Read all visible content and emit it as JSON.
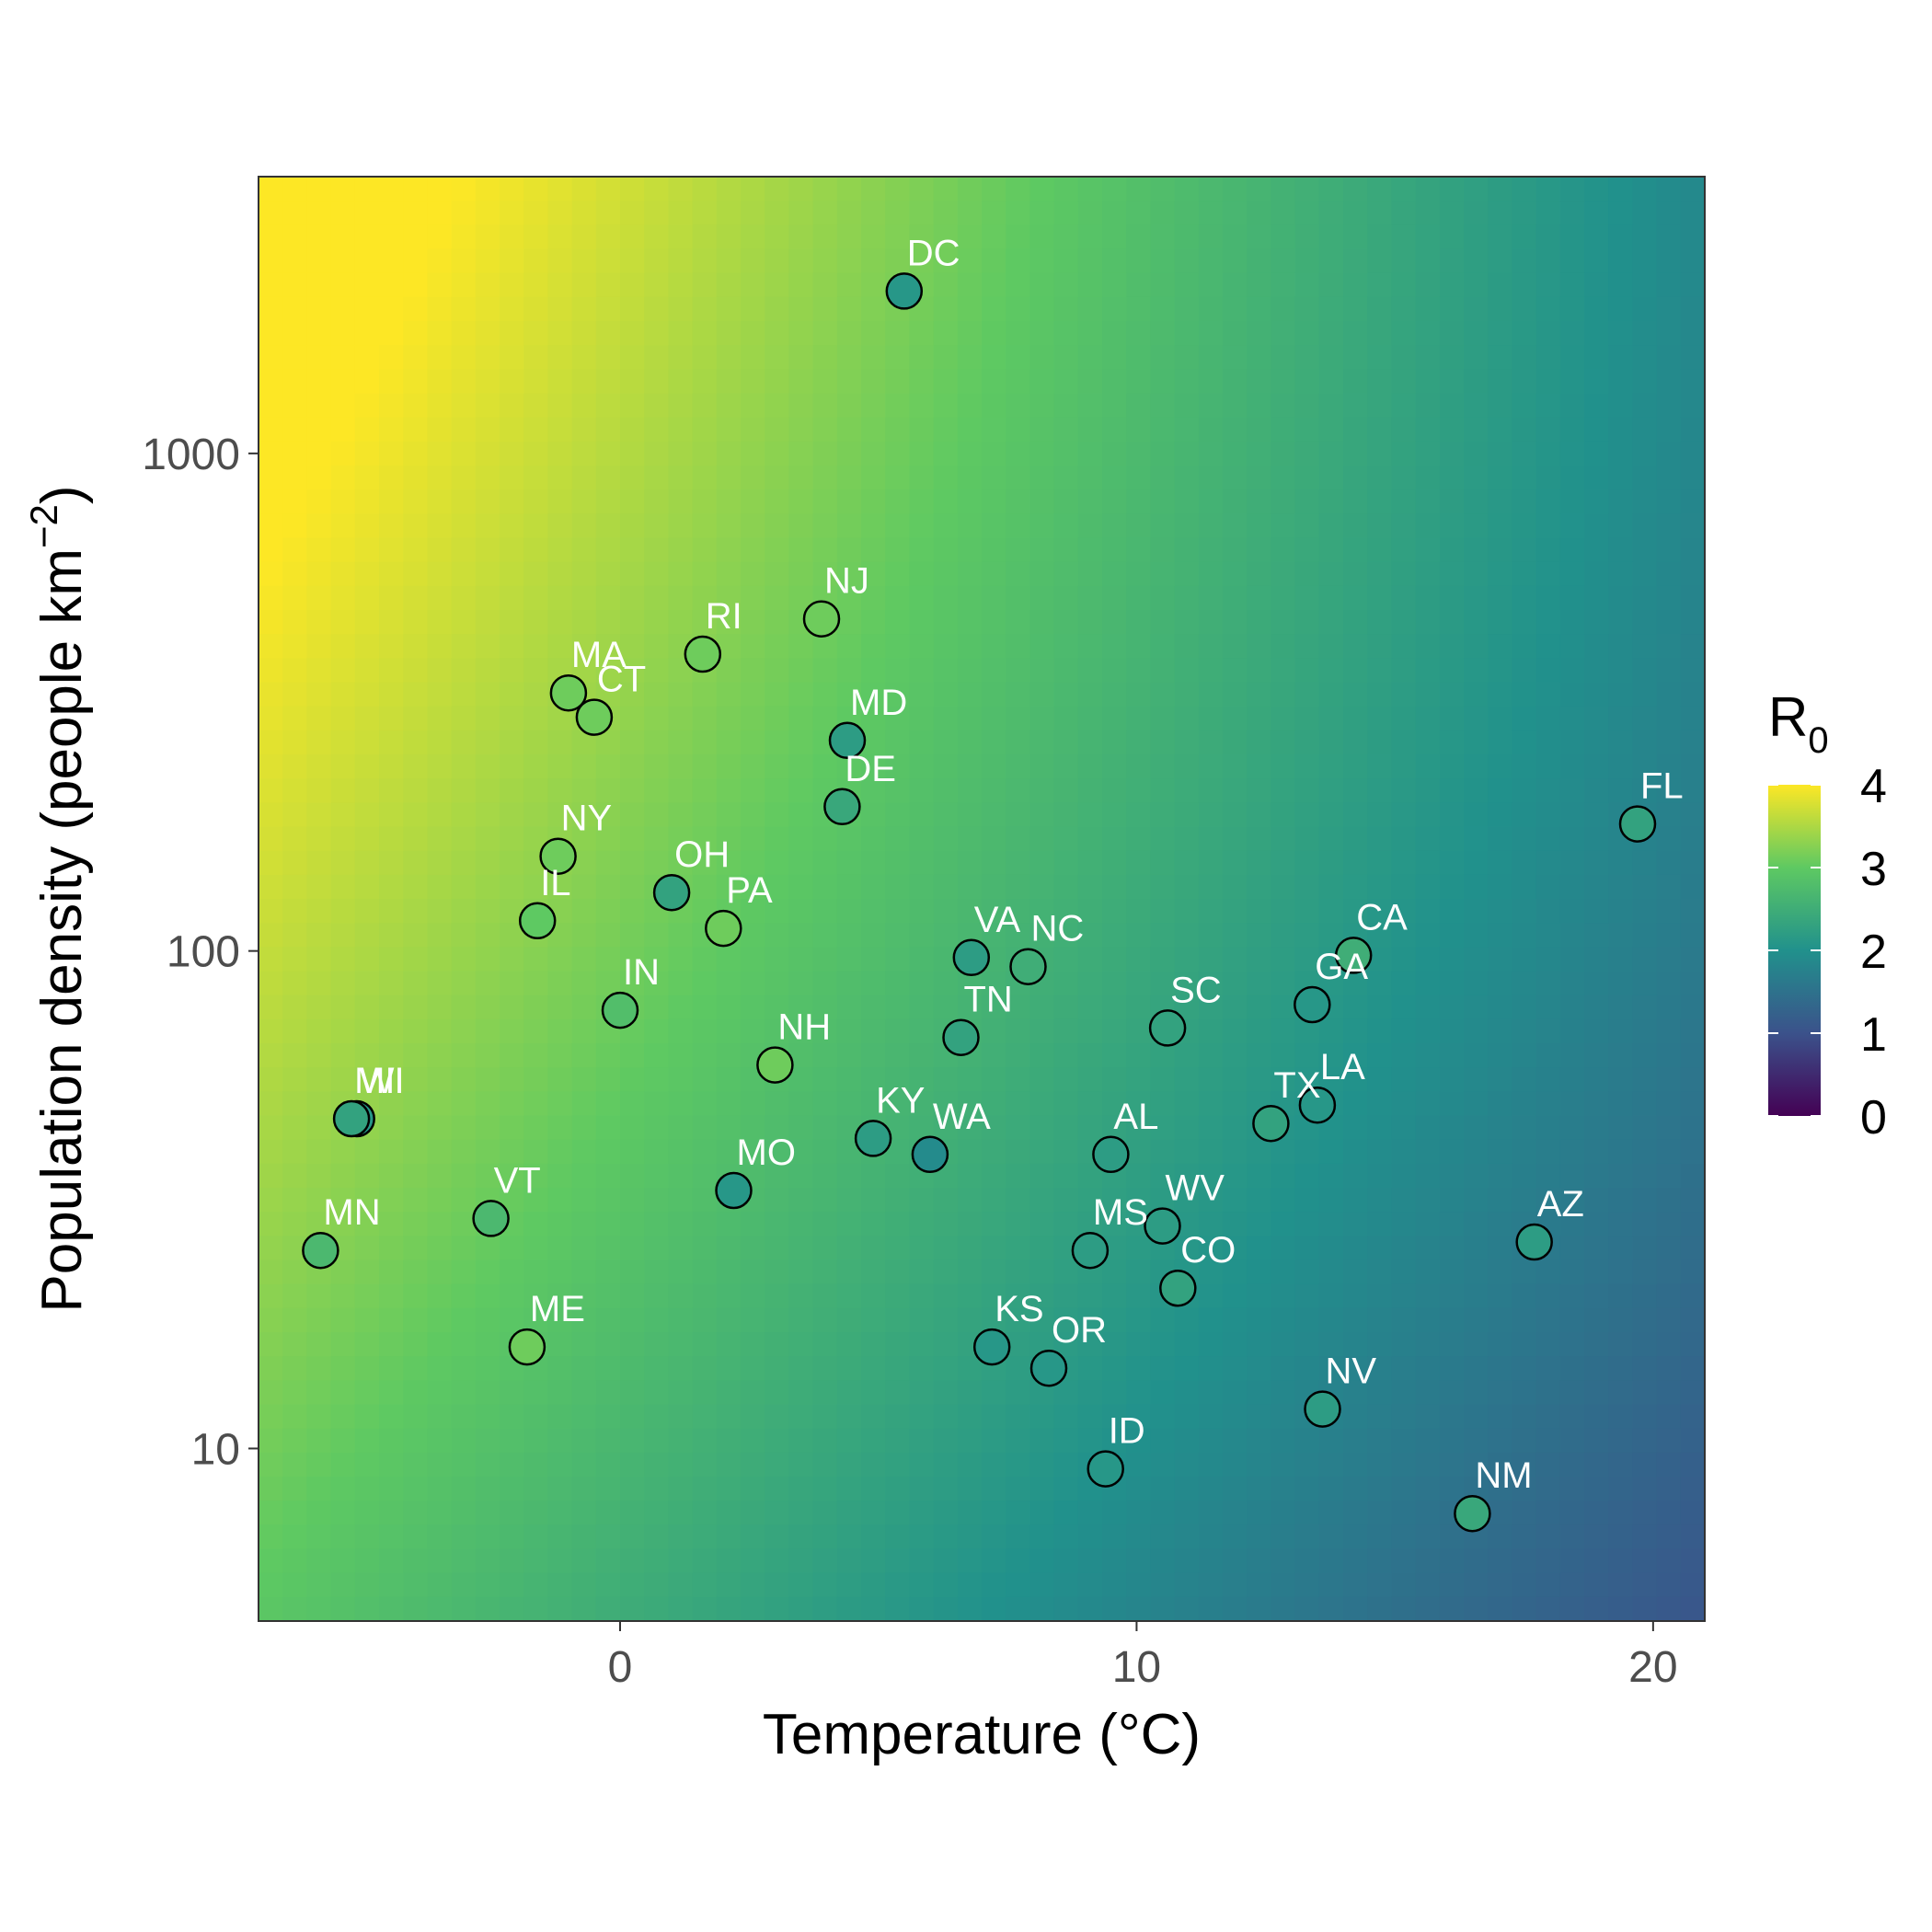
{
  "chart_data": {
    "type": "scatter",
    "xlabel": "Temperature (°C)",
    "ylabel_text": "Population density (people km",
    "ylabel_superscript": "−2",
    "ylabel_close": ")",
    "xlim": [
      -7,
      21
    ],
    "ylim": [
      4.5,
      3600
    ],
    "y_scale": "log10",
    "x_ticks": [
      0,
      10,
      20
    ],
    "x_tick_labels": [
      "0",
      "10",
      "20"
    ],
    "y_ticks": [
      10,
      100,
      1000
    ],
    "y_tick_labels": [
      "10",
      "100",
      "1000"
    ],
    "background_fill": "R0 as a function of temperature and population density",
    "legend": {
      "title_main": "R",
      "title_sub": "0",
      "position": "right",
      "range": [
        0,
        4
      ],
      "ticks": [
        0,
        1,
        2,
        3,
        4
      ],
      "tick_labels": [
        "0",
        "1",
        "2",
        "3",
        "4"
      ]
    },
    "colors": {
      "viridis": [
        "#440154",
        "#3b528b",
        "#21918c",
        "#5ec962",
        "#fde725"
      ],
      "point_outline": "#000000",
      "label": "#ffffff",
      "panel_border": "#333333"
    },
    "points": [
      {
        "label": "DC",
        "x": 5.5,
        "y": 2120,
        "r0": 2.1
      },
      {
        "label": "NJ",
        "x": 3.9,
        "y": 465,
        "r0": 3.1
      },
      {
        "label": "RI",
        "x": 1.6,
        "y": 395,
        "r0": 3.1
      },
      {
        "label": "MA",
        "x": -1.0,
        "y": 330,
        "r0": 3.1
      },
      {
        "label": "CT",
        "x": -0.5,
        "y": 295,
        "r0": 3.1
      },
      {
        "label": "MD",
        "x": 4.4,
        "y": 265,
        "r0": 2.2
      },
      {
        "label": "DE",
        "x": 4.3,
        "y": 195,
        "r0": 2.4
      },
      {
        "label": "FL",
        "x": 19.7,
        "y": 180,
        "r0": 2.3
      },
      {
        "label": "NY",
        "x": -1.2,
        "y": 155,
        "r0": 3.1
      },
      {
        "label": "OH",
        "x": 1.0,
        "y": 131,
        "r0": 2.3
      },
      {
        "label": "IL",
        "x": -1.6,
        "y": 115,
        "r0": 3.0
      },
      {
        "label": "PA",
        "x": 2.0,
        "y": 111,
        "r0": 3.1
      },
      {
        "label": "CA",
        "x": 14.2,
        "y": 98,
        "r0": 2.5
      },
      {
        "label": "VA",
        "x": 6.8,
        "y": 97,
        "r0": 2.2
      },
      {
        "label": "NC",
        "x": 7.9,
        "y": 93,
        "r0": 2.5
      },
      {
        "label": "GA",
        "x": 13.4,
        "y": 78,
        "r0": 2.1
      },
      {
        "label": "IN",
        "x": 0.0,
        "y": 76,
        "r0": 2.8
      },
      {
        "label": "SC",
        "x": 10.6,
        "y": 70,
        "r0": 2.3
      },
      {
        "label": "TN",
        "x": 6.6,
        "y": 67,
        "r0": 2.3
      },
      {
        "label": "NH",
        "x": 3.0,
        "y": 59,
        "r0": 3.1
      },
      {
        "label": "LA",
        "x": 13.5,
        "y": 49,
        "r0": 2.1
      },
      {
        "label": "TX",
        "x": 12.6,
        "y": 45,
        "r0": 2.3
      },
      {
        "label": "WI",
        "x": -5.1,
        "y": 46,
        "r0": 2.1
      },
      {
        "label": "MI",
        "x": -5.2,
        "y": 46,
        "r0": 2.3
      },
      {
        "label": "KY",
        "x": 4.9,
        "y": 42,
        "r0": 2.2
      },
      {
        "label": "WA",
        "x": 6.0,
        "y": 39,
        "r0": 1.9
      },
      {
        "label": "AL",
        "x": 9.5,
        "y": 39,
        "r0": 2.2
      },
      {
        "label": "MO",
        "x": 2.2,
        "y": 33,
        "r0": 2.1
      },
      {
        "label": "VT",
        "x": -2.5,
        "y": 29,
        "r0": 2.7
      },
      {
        "label": "WV",
        "x": 10.5,
        "y": 28,
        "r0": 2.2
      },
      {
        "label": "AZ",
        "x": 17.7,
        "y": 26,
        "r0": 2.2
      },
      {
        "label": "MN",
        "x": -5.8,
        "y": 25,
        "r0": 2.7
      },
      {
        "label": "MS",
        "x": 9.1,
        "y": 25,
        "r0": 2.2
      },
      {
        "label": "CO",
        "x": 10.8,
        "y": 21,
        "r0": 2.3
      },
      {
        "label": "ME",
        "x": -1.8,
        "y": 16,
        "r0": 3.1
      },
      {
        "label": "KS",
        "x": 7.2,
        "y": 16,
        "r0": 2.1
      },
      {
        "label": "OR",
        "x": 8.3,
        "y": 14.5,
        "r0": 2.1
      },
      {
        "label": "NV",
        "x": 13.6,
        "y": 12,
        "r0": 2.2
      },
      {
        "label": "ID",
        "x": 9.4,
        "y": 9.1,
        "r0": 2.1
      },
      {
        "label": "NM",
        "x": 16.5,
        "y": 7.4,
        "r0": 2.4
      }
    ]
  }
}
